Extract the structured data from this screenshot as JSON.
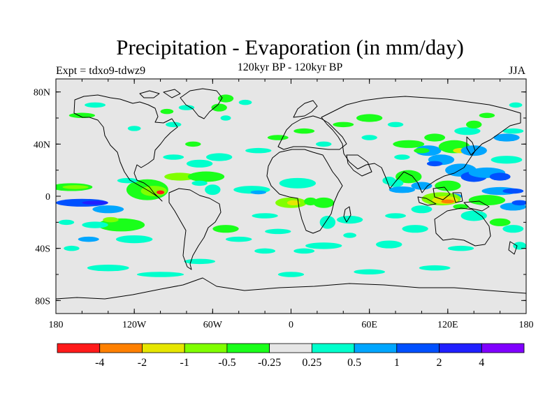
{
  "title": "Precipitation - Evaporation (in mm/day)",
  "subtitle": "120kyr BP - 120kyr BP",
  "left_label": "Expt = tdxo9-tdwz9",
  "right_label": "JJA",
  "colors": {
    "ocean": "#e6e6e6",
    "coast": "#000000"
  },
  "chart_data": {
    "type": "heatmap",
    "title": "Precipitation - Evaporation (in mm/day)",
    "subtitle": "120kyr BP - 120kyr BP",
    "xlim": [
      -180,
      180
    ],
    "ylim": [
      -90,
      90
    ],
    "x_ticks": [
      {
        "value": -180,
        "label": "180"
      },
      {
        "value": -120,
        "label": "120W"
      },
      {
        "value": -60,
        "label": "60W"
      },
      {
        "value": 0,
        "label": "0"
      },
      {
        "value": 60,
        "label": "60E"
      },
      {
        "value": 120,
        "label": "120E"
      },
      {
        "value": 180,
        "label": "180"
      }
    ],
    "y_ticks": [
      {
        "value": 80,
        "label": "80N"
      },
      {
        "value": 40,
        "label": "40N"
      },
      {
        "value": 0,
        "label": "0"
      },
      {
        "value": -40,
        "label": "40S"
      },
      {
        "value": -80,
        "label": "80S"
      }
    ],
    "colorbar": {
      "colors": [
        "#ff1a1a",
        "#ff8000",
        "#e6e600",
        "#80ff00",
        "#1aff1a",
        "#e6e6e6",
        "#00ffcc",
        "#00a6ff",
        "#0050ff",
        "#2020ff",
        "#8000ff"
      ],
      "labels": [
        "-4",
        "-2",
        "-1",
        "-0.5",
        "-0.25",
        "0.25",
        "0.5",
        "1",
        "2",
        "4"
      ]
    },
    "regions": [
      {
        "lon": -168,
        "lat": 7,
        "rx": 16,
        "ry": 3,
        "c": 4
      },
      {
        "lon": -165,
        "lat": 7,
        "rx": 10,
        "ry": 1.5,
        "c": 3
      },
      {
        "lon": -160,
        "lat": -5,
        "rx": 20,
        "ry": 3,
        "c": 8
      },
      {
        "lon": -150,
        "lat": -5,
        "rx": 10,
        "ry": 1.5,
        "c": 9
      },
      {
        "lon": -140,
        "lat": -10,
        "rx": 12,
        "ry": 3,
        "c": 7
      },
      {
        "lon": -110,
        "lat": 5,
        "rx": 16,
        "ry": 8,
        "c": 4
      },
      {
        "lon": -105,
        "lat": 4,
        "rx": 10,
        "ry": 4,
        "c": 3
      },
      {
        "lon": -100,
        "lat": 3,
        "rx": 3,
        "ry": 1.5,
        "c": 0
      },
      {
        "lon": -125,
        "lat": 12,
        "rx": 8,
        "ry": 2,
        "c": 6
      },
      {
        "lon": -130,
        "lat": -22,
        "rx": 18,
        "ry": 5,
        "c": 4
      },
      {
        "lon": -138,
        "lat": -18,
        "rx": 6,
        "ry": 2,
        "c": 3
      },
      {
        "lon": -150,
        "lat": -22,
        "rx": 10,
        "ry": 2.5,
        "c": 6
      },
      {
        "lon": -155,
        "lat": -33,
        "rx": 8,
        "ry": 2,
        "c": 7
      },
      {
        "lon": -120,
        "lat": -33,
        "rx": 14,
        "ry": 3,
        "c": 6
      },
      {
        "lon": -172,
        "lat": -20,
        "rx": 6,
        "ry": 2,
        "c": 6
      },
      {
        "lon": -168,
        "lat": -40,
        "rx": 6,
        "ry": 2,
        "c": 6
      },
      {
        "lon": -140,
        "lat": -55,
        "rx": 16,
        "ry": 2.5,
        "c": 6
      },
      {
        "lon": -100,
        "lat": -60,
        "rx": 18,
        "ry": 2,
        "c": 6
      },
      {
        "lon": -70,
        "lat": -50,
        "rx": 12,
        "ry": 2,
        "c": 6
      },
      {
        "lon": -85,
        "lat": 15,
        "rx": 12,
        "ry": 3,
        "c": 3
      },
      {
        "lon": -65,
        "lat": 15,
        "rx": 14,
        "ry": 4,
        "c": 4
      },
      {
        "lon": -70,
        "lat": 10,
        "rx": 6,
        "ry": 2,
        "c": 6
      },
      {
        "lon": -60,
        "lat": 5,
        "rx": 6,
        "ry": 4,
        "c": 6
      },
      {
        "lon": -70,
        "lat": 25,
        "rx": 10,
        "ry": 3,
        "c": 6
      },
      {
        "lon": -90,
        "lat": 30,
        "rx": 8,
        "ry": 2,
        "c": 6
      },
      {
        "lon": -55,
        "lat": 30,
        "rx": 10,
        "ry": 3,
        "c": 6
      },
      {
        "lon": -75,
        "lat": 40,
        "rx": 6,
        "ry": 2,
        "c": 4
      },
      {
        "lon": -90,
        "lat": 55,
        "rx": 6,
        "ry": 2,
        "c": 6
      },
      {
        "lon": -95,
        "lat": 65,
        "rx": 5,
        "ry": 2,
        "c": 4
      },
      {
        "lon": -120,
        "lat": 52,
        "rx": 5,
        "ry": 2,
        "c": 6
      },
      {
        "lon": -55,
        "lat": 68,
        "rx": 6,
        "ry": 3,
        "c": 4
      },
      {
        "lon": -50,
        "lat": 60,
        "rx": 4,
        "ry": 2,
        "c": 6
      },
      {
        "lon": -50,
        "lat": 75,
        "rx": 6,
        "ry": 3,
        "c": 4
      },
      {
        "lon": -80,
        "lat": 68,
        "rx": 6,
        "ry": 2,
        "c": 6
      },
      {
        "lon": -150,
        "lat": 70,
        "rx": 8,
        "ry": 2,
        "c": 6
      },
      {
        "lon": -160,
        "lat": 62,
        "rx": 10,
        "ry": 2,
        "c": 4
      },
      {
        "lon": -35,
        "lat": 72,
        "rx": 5,
        "ry": 2,
        "c": 6
      },
      {
        "lon": -25,
        "lat": 35,
        "rx": 10,
        "ry": 2,
        "c": 6
      },
      {
        "lon": -50,
        "lat": -25,
        "rx": 10,
        "ry": 3,
        "c": 4
      },
      {
        "lon": -40,
        "lat": -33,
        "rx": 10,
        "ry": 2,
        "c": 6
      },
      {
        "lon": -20,
        "lat": -15,
        "rx": 10,
        "ry": 2,
        "c": 6
      },
      {
        "lon": -10,
        "lat": -27,
        "rx": 10,
        "ry": 2,
        "c": 6
      },
      {
        "lon": -20,
        "lat": -42,
        "rx": 8,
        "ry": 2,
        "c": 6
      },
      {
        "lon": -30,
        "lat": 5,
        "rx": 14,
        "ry": 3,
        "c": 6
      },
      {
        "lon": -25,
        "lat": 3,
        "rx": 6,
        "ry": 1.5,
        "c": 7
      },
      {
        "lon": 0,
        "lat": -5,
        "rx": 12,
        "ry": 4,
        "c": 3
      },
      {
        "lon": 2,
        "lat": -5,
        "rx": 5,
        "ry": 2,
        "c": 2
      },
      {
        "lon": 15,
        "lat": -4,
        "rx": 5,
        "ry": 3,
        "c": 4
      },
      {
        "lon": 5,
        "lat": 10,
        "rx": 14,
        "ry": 4,
        "c": 6
      },
      {
        "lon": 25,
        "lat": -5,
        "rx": 8,
        "ry": 4,
        "c": 4
      },
      {
        "lon": 28,
        "lat": -20,
        "rx": 6,
        "ry": 5,
        "c": 6
      },
      {
        "lon": 25,
        "lat": -38,
        "rx": 14,
        "ry": 2.5,
        "c": 6
      },
      {
        "lon": 10,
        "lat": -42,
        "rx": 8,
        "ry": 2,
        "c": 6
      },
      {
        "lon": 45,
        "lat": -18,
        "rx": 10,
        "ry": 3,
        "c": 6
      },
      {
        "lon": 45,
        "lat": -30,
        "rx": 5,
        "ry": 2,
        "c": 6
      },
      {
        "lon": 75,
        "lat": -37,
        "rx": 10,
        "ry": 3,
        "c": 6
      },
      {
        "lon": 95,
        "lat": -25,
        "rx": 10,
        "ry": 3,
        "c": 6
      },
      {
        "lon": 80,
        "lat": -15,
        "rx": 8,
        "ry": 2,
        "c": 6
      },
      {
        "lon": -10,
        "lat": 45,
        "rx": 8,
        "ry": 2,
        "c": 4
      },
      {
        "lon": 10,
        "lat": 50,
        "rx": 8,
        "ry": 2,
        "c": 4
      },
      {
        "lon": 25,
        "lat": 40,
        "rx": 6,
        "ry": 2,
        "c": 6
      },
      {
        "lon": 40,
        "lat": 55,
        "rx": 8,
        "ry": 2,
        "c": 4
      },
      {
        "lon": 60,
        "lat": 60,
        "rx": 10,
        "ry": 3,
        "c": 4
      },
      {
        "lon": 80,
        "lat": 55,
        "rx": 6,
        "ry": 2,
        "c": 6
      },
      {
        "lon": 90,
        "lat": 40,
        "rx": 12,
        "ry": 3,
        "c": 4
      },
      {
        "lon": 85,
        "lat": 30,
        "rx": 6,
        "ry": 2,
        "c": 6
      },
      {
        "lon": 60,
        "lat": 45,
        "rx": 6,
        "ry": 2,
        "c": 6
      },
      {
        "lon": 110,
        "lat": 45,
        "rx": 8,
        "ry": 3,
        "c": 4
      },
      {
        "lon": 105,
        "lat": 35,
        "rx": 10,
        "ry": 4,
        "c": 7
      },
      {
        "lon": 100,
        "lat": 35,
        "rx": 6,
        "ry": 2,
        "c": 4
      },
      {
        "lon": 125,
        "lat": 38,
        "rx": 12,
        "ry": 5,
        "c": 4
      },
      {
        "lon": 130,
        "lat": 35,
        "rx": 6,
        "ry": 2,
        "c": 2
      },
      {
        "lon": 140,
        "lat": 35,
        "rx": 10,
        "ry": 4,
        "c": 7
      },
      {
        "lon": 135,
        "lat": 50,
        "rx": 10,
        "ry": 3,
        "c": 6
      },
      {
        "lon": 140,
        "lat": 55,
        "rx": 6,
        "ry": 3,
        "c": 4
      },
      {
        "lon": 165,
        "lat": 45,
        "rx": 10,
        "ry": 3,
        "c": 7
      },
      {
        "lon": 170,
        "lat": 50,
        "rx": 8,
        "ry": 2,
        "c": 6
      },
      {
        "lon": 115,
        "lat": 28,
        "rx": 10,
        "ry": 4,
        "c": 7
      },
      {
        "lon": 110,
        "lat": 25,
        "rx": 6,
        "ry": 2,
        "c": 8
      },
      {
        "lon": 130,
        "lat": 20,
        "rx": 12,
        "ry": 5,
        "c": 7
      },
      {
        "lon": 140,
        "lat": 15,
        "rx": 10,
        "ry": 4,
        "c": 8
      },
      {
        "lon": 150,
        "lat": 18,
        "rx": 14,
        "ry": 4,
        "c": 7
      },
      {
        "lon": 160,
        "lat": 15,
        "rx": 8,
        "ry": 3,
        "c": 8
      },
      {
        "lon": 165,
        "lat": 28,
        "rx": 12,
        "ry": 3,
        "c": 6
      },
      {
        "lon": 90,
        "lat": 15,
        "rx": 10,
        "ry": 5,
        "c": 4
      },
      {
        "lon": 80,
        "lat": 10,
        "rx": 6,
        "ry": 3,
        "c": 6
      },
      {
        "lon": 75,
        "lat": 12,
        "rx": 5,
        "ry": 3,
        "c": 6
      },
      {
        "lon": 85,
        "lat": 5,
        "rx": 10,
        "ry": 2.5,
        "c": 7
      },
      {
        "lon": 100,
        "lat": 8,
        "rx": 8,
        "ry": 3,
        "c": 7
      },
      {
        "lon": 120,
        "lat": 8,
        "rx": 10,
        "ry": 4,
        "c": 4
      },
      {
        "lon": 125,
        "lat": 0,
        "rx": 6,
        "ry": 2,
        "c": 7
      },
      {
        "lon": 115,
        "lat": -2,
        "rx": 15,
        "ry": 5,
        "c": 3
      },
      {
        "lon": 118,
        "lat": -3,
        "rx": 10,
        "ry": 3,
        "c": 2
      },
      {
        "lon": 120,
        "lat": -4,
        "rx": 5,
        "ry": 1.5,
        "c": 1
      },
      {
        "lon": 150,
        "lat": -3,
        "rx": 14,
        "ry": 4,
        "c": 4
      },
      {
        "lon": 160,
        "lat": 4,
        "rx": 14,
        "ry": 3,
        "c": 7
      },
      {
        "lon": 170,
        "lat": 4,
        "rx": 8,
        "ry": 2,
        "c": 8
      },
      {
        "lon": 170,
        "lat": -8,
        "rx": 10,
        "ry": 3,
        "c": 7
      },
      {
        "lon": 175,
        "lat": -5,
        "rx": 6,
        "ry": 2,
        "c": 8
      },
      {
        "lon": 100,
        "lat": -10,
        "rx": 8,
        "ry": 3,
        "c": 6
      },
      {
        "lon": 140,
        "lat": -15,
        "rx": 10,
        "ry": 4,
        "c": 6
      },
      {
        "lon": 130,
        "lat": -8,
        "rx": 6,
        "ry": 2,
        "c": 4
      },
      {
        "lon": 160,
        "lat": -20,
        "rx": 8,
        "ry": 3,
        "c": 4
      },
      {
        "lon": 170,
        "lat": -25,
        "rx": 8,
        "ry": 3,
        "c": 6
      },
      {
        "lon": 175,
        "lat": -38,
        "rx": 5,
        "ry": 3,
        "c": 6
      },
      {
        "lon": 130,
        "lat": -40,
        "rx": 10,
        "ry": 2,
        "c": 6
      },
      {
        "lon": 110,
        "lat": -55,
        "rx": 12,
        "ry": 2,
        "c": 6
      },
      {
        "lon": 60,
        "lat": -58,
        "rx": 12,
        "ry": 2,
        "c": 6
      },
      {
        "lon": 0,
        "lat": -60,
        "rx": 10,
        "ry": 2,
        "c": 6
      },
      {
        "lon": 172,
        "lat": 70,
        "rx": 5,
        "ry": 2,
        "c": 6
      },
      {
        "lon": 150,
        "lat": 62,
        "rx": 6,
        "ry": 2,
        "c": 4
      }
    ]
  }
}
